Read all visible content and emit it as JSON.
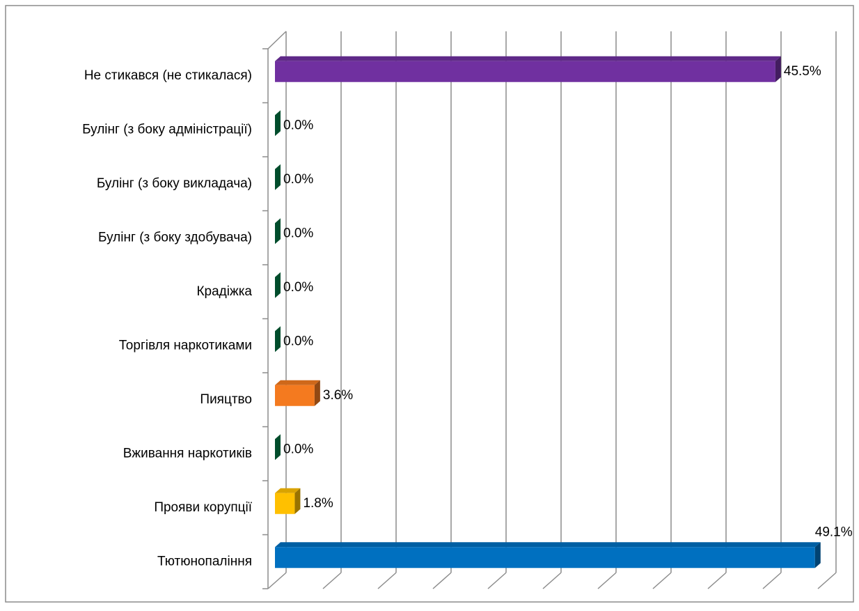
{
  "chart_data": {
    "type": "bar3d",
    "orientation": "horizontal",
    "categories": [
      "Не стикався (не стикалася)",
      "Булінг (з боку адміністрації)",
      "Булінг (з боку викладача)",
      "Булінг (з боку здобувача)",
      "Крадіжка",
      "Торгівля наркотиками",
      "Пияцтво",
      "Вживання наркотиків",
      "Прояви корупції",
      "Тютюнопаління"
    ],
    "values": [
      45.5,
      0,
      0,
      0,
      0,
      0,
      3.6,
      0,
      1.8,
      49.1
    ],
    "value_labels": [
      "45.5%",
      "0.0%",
      "0.0%",
      "0.0%",
      "0.0%",
      "0.0%",
      "3.6%",
      "0.0%",
      "1.8%",
      "49.1%"
    ],
    "colors": [
      "#7030a0",
      "#00804a",
      "#00804a",
      "#00804a",
      "#00804a",
      "#00804a",
      "#f47a1f",
      "#00804a",
      "#ffc000",
      "#0070c0"
    ],
    "xlim": [
      0,
      50
    ],
    "xticks": [
      0,
      5,
      10,
      15,
      20,
      25,
      30,
      35,
      40,
      45,
      50
    ],
    "grid": true
  }
}
